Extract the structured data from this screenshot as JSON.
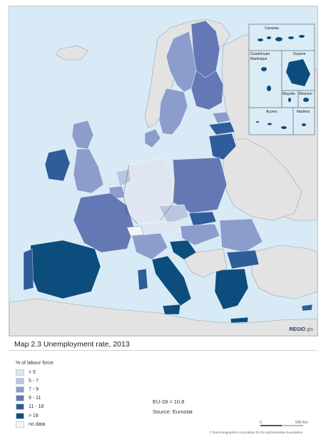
{
  "map": {
    "title": "Map 2.3 Unemployment rate, 2013",
    "brand": "REGIO",
    "brand_suffix": "gis",
    "eu_average": "EU-28 = 10.8",
    "source": "Source: Eurostat",
    "copyright": "© EuroGeographics Association for the administrative boundaries",
    "scale": {
      "zero": "0",
      "distance": "500 Km"
    },
    "colors": {
      "sea": "#d7eaf5",
      "non_eu_land": "#e3e3e3",
      "border": "#2b2b2b",
      "class_lt5": "#dfe6f2",
      "class_5_7": "#bac6e0",
      "class_7_9": "#8c9dcc",
      "class_9_11": "#6578b6",
      "class_11_18": "#2f5d9a",
      "class_gt18": "#0d4d7e",
      "no_data": "#f3f5f8"
    }
  },
  "legend": {
    "title": "% of labour force",
    "items": [
      {
        "label": "< 5",
        "color": "#dfe6f2"
      },
      {
        "label": "5 - 7",
        "color": "#bac6e0"
      },
      {
        "label": "7 - 9",
        "color": "#8c9dcc"
      },
      {
        "label": "9 - 11",
        "color": "#6578b6"
      },
      {
        "label": "11 - 18",
        "color": "#2f5d9a"
      },
      {
        "label": "> 18",
        "color": "#0d4d7e"
      },
      {
        "label": "no data",
        "color": "#f3f5f8"
      }
    ]
  },
  "insets": {
    "canarias": "Canarias",
    "guadeloupe": "Guadeloupe",
    "martinique": "Martinique",
    "guyane": "Guyane",
    "mayotte": "Mayotte",
    "reunion": "Réunion",
    "acores": "Açores",
    "madeira": "Madeira"
  }
}
